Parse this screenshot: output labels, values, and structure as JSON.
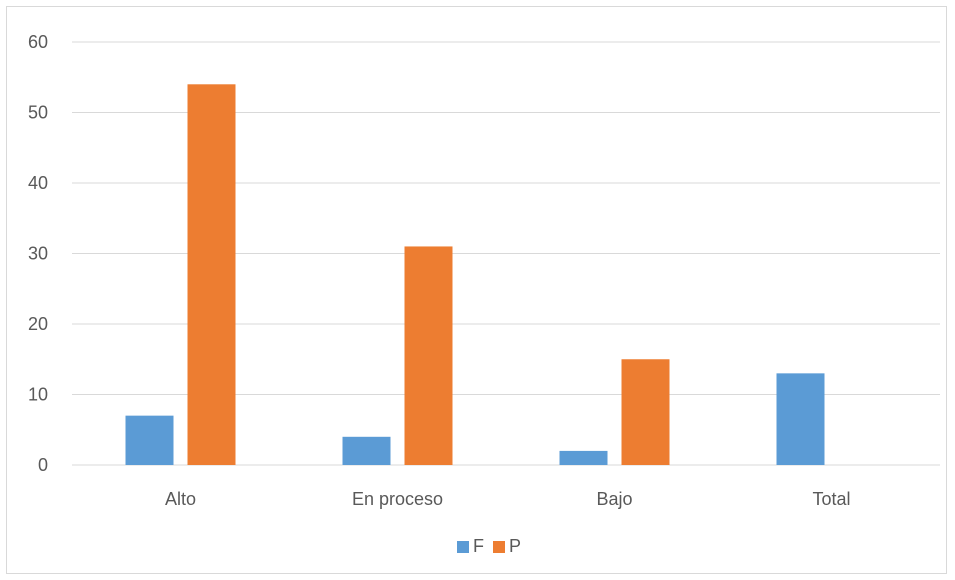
{
  "chart_data": {
    "type": "bar",
    "categories": [
      "Alto",
      "En proceso",
      "Bajo",
      "Total"
    ],
    "series": [
      {
        "name": "F",
        "values": [
          7,
          4,
          2,
          13
        ],
        "color": "#5b9bd5"
      },
      {
        "name": "P",
        "values": [
          54,
          31,
          15,
          null
        ],
        "color": "#ed7d31"
      }
    ],
    "y_ticks": [
      "0",
      "10",
      "20",
      "30",
      "40",
      "50",
      "60"
    ],
    "ylim": [
      0,
      60
    ],
    "grid": true,
    "legend_position": "bottom",
    "gridline_color": "#d9d9d9"
  }
}
